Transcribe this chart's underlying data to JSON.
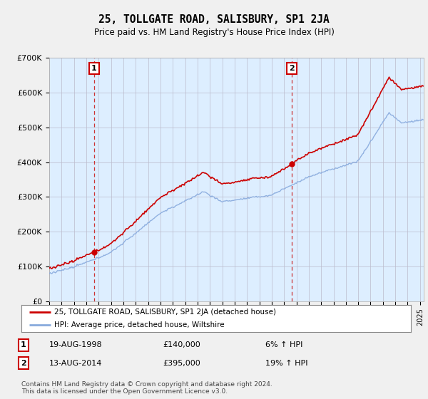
{
  "title": "25, TOLLGATE ROAD, SALISBURY, SP1 2JA",
  "subtitle": "Price paid vs. HM Land Registry's House Price Index (HPI)",
  "legend_label_red": "25, TOLLGATE ROAD, SALISBURY, SP1 2JA (detached house)",
  "legend_label_blue": "HPI: Average price, detached house, Wiltshire",
  "sale1_date": "19-AUG-1998",
  "sale1_price": "£140,000",
  "sale1_hpi": "6% ↑ HPI",
  "sale2_date": "13-AUG-2014",
  "sale2_price": "£395,000",
  "sale2_hpi": "19% ↑ HPI",
  "footnote": "Contains HM Land Registry data © Crown copyright and database right 2024.\nThis data is licensed under the Open Government Licence v3.0.",
  "color_red": "#cc0000",
  "color_blue": "#88aadd",
  "plot_bg_color": "#ddeeff",
  "background_color": "#f0f0f0",
  "ylim": [
    0,
    700000
  ],
  "yticks": [
    0,
    100000,
    200000,
    300000,
    400000,
    500000,
    600000,
    700000
  ],
  "ytick_labels": [
    "£0",
    "£100K",
    "£200K",
    "£300K",
    "£400K",
    "£500K",
    "£600K",
    "£700K"
  ],
  "sale1_x": 1998.63,
  "sale1_y": 140000,
  "sale2_x": 2014.62,
  "sale2_y": 395000,
  "vline1_x": 1998.63,
  "vline2_x": 2014.62,
  "xmin": 1995,
  "xmax": 2025.3
}
